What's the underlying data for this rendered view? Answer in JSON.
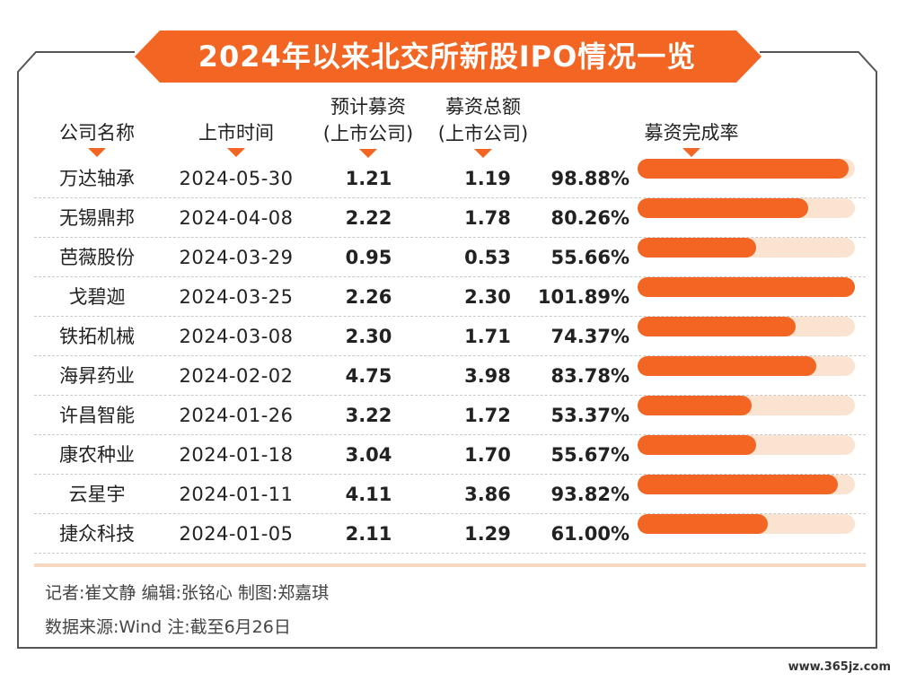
{
  "title": "2024年以来北交所新股IPO情况一览",
  "headers": {
    "name": "公司名称",
    "date": "上市时间",
    "expected_l1": "预计募资",
    "expected_l2": "(上市公司)",
    "total_l1": "募资总额",
    "total_l2": "(上市公司)",
    "rate": "募资完成率"
  },
  "colors": {
    "accent": "#f26522",
    "track": "#fbe3d1",
    "border": "#555555"
  },
  "chart_data": {
    "type": "table",
    "title": "2024年以来北交所新股IPO情况一览",
    "columns": [
      "公司名称",
      "上市时间",
      "预计募资(上市公司)",
      "募资总额(上市公司)",
      "募资完成率"
    ],
    "rows": [
      {
        "name": "万达轴承",
        "date": "2024-05-30",
        "expected": "1.21",
        "total": "1.19",
        "rate_text": "98.88%",
        "rate": 98.88
      },
      {
        "name": "无锡鼎邦",
        "date": "2024-04-08",
        "expected": "2.22",
        "total": "1.78",
        "rate_text": "80.26%",
        "rate": 80.26
      },
      {
        "name": "芭薇股份",
        "date": "2024-03-29",
        "expected": "0.95",
        "total": "0.53",
        "rate_text": "55.66%",
        "rate": 55.66
      },
      {
        "name": "戈碧迦",
        "date": "2024-03-25",
        "expected": "2.26",
        "total": "2.30",
        "rate_text": "101.89%",
        "rate": 101.89
      },
      {
        "name": "铁拓机械",
        "date": "2024-03-08",
        "expected": "2.30",
        "total": "1.71",
        "rate_text": "74.37%",
        "rate": 74.37
      },
      {
        "name": "海昇药业",
        "date": "2024-02-02",
        "expected": "4.75",
        "total": "3.98",
        "rate_text": "83.78%",
        "rate": 83.78
      },
      {
        "name": "许昌智能",
        "date": "2024-01-26",
        "expected": "3.22",
        "total": "1.72",
        "rate_text": "53.37%",
        "rate": 53.37
      },
      {
        "name": "康农种业",
        "date": "2024-01-18",
        "expected": "3.04",
        "total": "1.70",
        "rate_text": "55.67%",
        "rate": 55.67
      },
      {
        "name": "云星宇",
        "date": "2024-01-11",
        "expected": "4.11",
        "total": "3.86",
        "rate_text": "93.82%",
        "rate": 93.82
      },
      {
        "name": "捷众科技",
        "date": "2024-01-05",
        "expected": "2.11",
        "total": "1.29",
        "rate_text": "61.00%",
        "rate": 61.0
      }
    ]
  },
  "footer": {
    "line1": "记者:崔文静  编辑:张铭心  制图:郑嘉琪",
    "line2": "数据来源:Wind  注:截至6月26日"
  },
  "watermark": "www.365jz.com"
}
